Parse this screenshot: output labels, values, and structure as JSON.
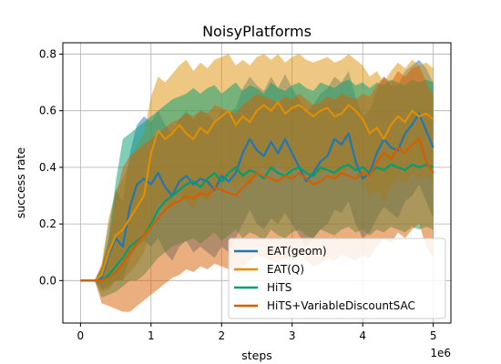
{
  "chart_data": {
    "type": "line",
    "title": "NoisyPlatforms",
    "xlabel": "steps",
    "ylabel": "success rate",
    "x_offset_label": "1e6",
    "xlim": [
      -0.25,
      5.25
    ],
    "ylim": [
      -0.15,
      0.84
    ],
    "xticks": [
      0,
      1,
      2,
      3,
      4,
      5
    ],
    "xtick_labels": [
      "0",
      "1",
      "2",
      "3",
      "4",
      "5"
    ],
    "yticks": [
      0.0,
      0.2,
      0.4,
      0.6,
      0.8
    ],
    "ytick_labels": [
      "0.0",
      "0.2",
      "0.4",
      "0.6",
      "0.8"
    ],
    "grid": true,
    "legend_position": "lower-right",
    "x": [
      0,
      0.1,
      0.2,
      0.3,
      0.4,
      0.5,
      0.6,
      0.7,
      0.8,
      0.9,
      1.0,
      1.1,
      1.2,
      1.3,
      1.4,
      1.5,
      1.6,
      1.7,
      1.8,
      1.9,
      2.0,
      2.1,
      2.2,
      2.3,
      2.4,
      2.5,
      2.6,
      2.7,
      2.8,
      2.9,
      3.0,
      3.1,
      3.2,
      3.3,
      3.4,
      3.5,
      3.6,
      3.7,
      3.8,
      3.9,
      4.0,
      4.1,
      4.2,
      4.3,
      4.4,
      4.5,
      4.6,
      4.7,
      4.8,
      4.9,
      5.0
    ],
    "series": [
      {
        "name": "EAT(geom)",
        "color": "#1f77b4",
        "values": [
          0,
          0,
          0,
          0.01,
          0.09,
          0.15,
          0.12,
          0.26,
          0.34,
          0.36,
          0.34,
          0.38,
          0.33,
          0.3,
          0.35,
          0.37,
          0.34,
          0.36,
          0.35,
          0.32,
          0.37,
          0.35,
          0.38,
          0.45,
          0.5,
          0.46,
          0.44,
          0.49,
          0.45,
          0.5,
          0.45,
          0.4,
          0.35,
          0.38,
          0.42,
          0.44,
          0.5,
          0.48,
          0.52,
          0.42,
          0.36,
          0.38,
          0.45,
          0.5,
          0.47,
          0.46,
          0.52,
          0.55,
          0.59,
          0.53,
          0.47
        ],
        "lower": [
          0,
          0,
          0,
          -0.03,
          -0.02,
          0.0,
          0.0,
          0.08,
          0.12,
          0.14,
          0.12,
          0.15,
          0.1,
          0.07,
          0.12,
          0.14,
          0.1,
          0.12,
          0.1,
          0.08,
          0.12,
          0.1,
          0.15,
          0.2,
          0.25,
          0.2,
          0.18,
          0.22,
          0.2,
          0.24,
          0.2,
          0.16,
          0.12,
          0.15,
          0.18,
          0.2,
          0.25,
          0.24,
          0.28,
          0.2,
          0.15,
          0.17,
          0.22,
          0.26,
          0.24,
          0.22,
          0.28,
          0.3,
          0.34,
          0.28,
          0.22
        ],
        "upper": [
          0,
          0,
          0,
          0.05,
          0.2,
          0.32,
          0.28,
          0.45,
          0.55,
          0.58,
          0.56,
          0.6,
          0.55,
          0.52,
          0.57,
          0.6,
          0.57,
          0.6,
          0.59,
          0.56,
          0.6,
          0.59,
          0.61,
          0.68,
          0.72,
          0.69,
          0.67,
          0.72,
          0.68,
          0.73,
          0.68,
          0.64,
          0.59,
          0.62,
          0.66,
          0.68,
          0.72,
          0.7,
          0.74,
          0.65,
          0.58,
          0.6,
          0.67,
          0.72,
          0.69,
          0.69,
          0.74,
          0.76,
          0.78,
          0.75,
          0.7
        ]
      },
      {
        "name": "EAT(Q)",
        "color": "#de8f05",
        "values": [
          0,
          0,
          0,
          0.02,
          0.1,
          0.16,
          0.18,
          0.22,
          0.26,
          0.3,
          0.45,
          0.53,
          0.5,
          0.52,
          0.55,
          0.52,
          0.5,
          0.54,
          0.52,
          0.56,
          0.58,
          0.6,
          0.55,
          0.58,
          0.56,
          0.6,
          0.62,
          0.6,
          0.63,
          0.59,
          0.61,
          0.62,
          0.6,
          0.58,
          0.6,
          0.61,
          0.58,
          0.59,
          0.62,
          0.6,
          0.57,
          0.52,
          0.54,
          0.5,
          0.55,
          0.58,
          0.56,
          0.6,
          0.58,
          0.59,
          0.57
        ],
        "lower": [
          0,
          0,
          0,
          -0.04,
          -0.03,
          0.0,
          0.0,
          0.03,
          0.06,
          0.1,
          0.2,
          0.28,
          0.25,
          0.27,
          0.3,
          0.28,
          0.25,
          0.3,
          0.28,
          0.32,
          0.34,
          0.36,
          0.32,
          0.35,
          0.34,
          0.38,
          0.4,
          0.38,
          0.42,
          0.38,
          0.4,
          0.41,
          0.38,
          0.36,
          0.38,
          0.4,
          0.36,
          0.37,
          0.4,
          0.38,
          0.35,
          0.3,
          0.32,
          0.28,
          0.33,
          0.36,
          0.34,
          0.38,
          0.36,
          0.37,
          0.35
        ],
        "upper": [
          0,
          0,
          0,
          0.06,
          0.22,
          0.32,
          0.36,
          0.42,
          0.48,
          0.52,
          0.65,
          0.72,
          0.7,
          0.73,
          0.76,
          0.78,
          0.74,
          0.77,
          0.75,
          0.78,
          0.79,
          0.8,
          0.76,
          0.78,
          0.76,
          0.79,
          0.8,
          0.78,
          0.8,
          0.77,
          0.79,
          0.8,
          0.78,
          0.77,
          0.78,
          0.79,
          0.77,
          0.78,
          0.8,
          0.78,
          0.76,
          0.72,
          0.74,
          0.7,
          0.74,
          0.77,
          0.75,
          0.78,
          0.76,
          0.77,
          0.75
        ]
      },
      {
        "name": "HiTS",
        "color": "#029e73",
        "values": [
          0,
          0,
          0,
          0.0,
          0.02,
          0.05,
          0.08,
          0.12,
          0.14,
          0.16,
          0.2,
          0.25,
          0.28,
          0.3,
          0.32,
          0.34,
          0.35,
          0.33,
          0.36,
          0.38,
          0.35,
          0.38,
          0.4,
          0.37,
          0.39,
          0.38,
          0.36,
          0.4,
          0.38,
          0.37,
          0.39,
          0.4,
          0.38,
          0.37,
          0.4,
          0.39,
          0.38,
          0.4,
          0.41,
          0.39,
          0.4,
          0.38,
          0.4,
          0.39,
          0.41,
          0.4,
          0.39,
          0.41,
          0.4,
          0.41,
          0.4
        ],
        "lower": [
          0,
          0,
          0,
          -0.06,
          -0.05,
          -0.04,
          -0.02,
          0.0,
          0.0,
          0.02,
          0.05,
          0.08,
          0.1,
          0.12,
          0.13,
          0.14,
          0.15,
          0.13,
          0.15,
          0.17,
          0.14,
          0.16,
          0.18,
          0.15,
          0.17,
          0.16,
          0.14,
          0.18,
          0.16,
          0.15,
          0.17,
          0.18,
          0.16,
          0.15,
          0.18,
          0.17,
          0.16,
          0.18,
          0.19,
          0.17,
          0.18,
          0.16,
          0.18,
          0.17,
          0.19,
          0.18,
          0.17,
          0.19,
          0.18,
          0.19,
          0.18
        ],
        "upper": [
          0,
          0,
          0,
          0.04,
          0.15,
          0.35,
          0.5,
          0.52,
          0.54,
          0.56,
          0.58,
          0.6,
          0.62,
          0.64,
          0.65,
          0.66,
          0.68,
          0.66,
          0.68,
          0.69,
          0.66,
          0.68,
          0.7,
          0.67,
          0.69,
          0.68,
          0.66,
          0.7,
          0.68,
          0.67,
          0.69,
          0.7,
          0.68,
          0.67,
          0.7,
          0.69,
          0.68,
          0.7,
          0.71,
          0.69,
          0.7,
          0.68,
          0.7,
          0.69,
          0.71,
          0.7,
          0.69,
          0.71,
          0.7,
          0.71,
          0.7
        ]
      },
      {
        "name": "HiTS+VariableDiscountSAC",
        "color": "#d55e00",
        "values": [
          0,
          0,
          0,
          0.0,
          0.01,
          0.03,
          0.06,
          0.1,
          0.13,
          0.16,
          0.19,
          0.22,
          0.25,
          0.27,
          0.28,
          0.3,
          0.29,
          0.31,
          0.3,
          0.33,
          0.32,
          0.31,
          0.3,
          0.33,
          0.35,
          0.38,
          0.37,
          0.36,
          0.35,
          0.37,
          0.36,
          0.38,
          0.36,
          0.34,
          0.35,
          0.37,
          0.36,
          0.38,
          0.37,
          0.36,
          0.38,
          0.37,
          0.42,
          0.45,
          0.43,
          0.47,
          0.45,
          0.48,
          0.5,
          0.42,
          0.38
        ],
        "lower": [
          0,
          0,
          0,
          -0.08,
          -0.09,
          -0.1,
          -0.11,
          -0.11,
          -0.09,
          -0.07,
          -0.05,
          -0.03,
          -0.01,
          0.01,
          0.02,
          0.04,
          0.03,
          0.05,
          0.04,
          0.06,
          0.05,
          0.04,
          0.03,
          0.05,
          0.07,
          0.09,
          0.08,
          0.07,
          0.06,
          0.08,
          0.07,
          0.09,
          0.07,
          0.05,
          0.06,
          0.08,
          0.07,
          0.09,
          0.08,
          0.07,
          0.09,
          0.08,
          0.12,
          0.15,
          0.13,
          0.17,
          0.15,
          0.18,
          0.2,
          0.12,
          0.08
        ],
        "upper": [
          0,
          0,
          0,
          0.05,
          0.14,
          0.3,
          0.4,
          0.44,
          0.46,
          0.48,
          0.5,
          0.52,
          0.54,
          0.56,
          0.57,
          0.59,
          0.58,
          0.6,
          0.59,
          0.62,
          0.61,
          0.6,
          0.59,
          0.62,
          0.64,
          0.66,
          0.65,
          0.64,
          0.63,
          0.65,
          0.64,
          0.66,
          0.64,
          0.62,
          0.63,
          0.65,
          0.64,
          0.66,
          0.65,
          0.64,
          0.66,
          0.65,
          0.69,
          0.72,
          0.7,
          0.74,
          0.72,
          0.75,
          0.76,
          0.7,
          0.65
        ]
      }
    ]
  }
}
